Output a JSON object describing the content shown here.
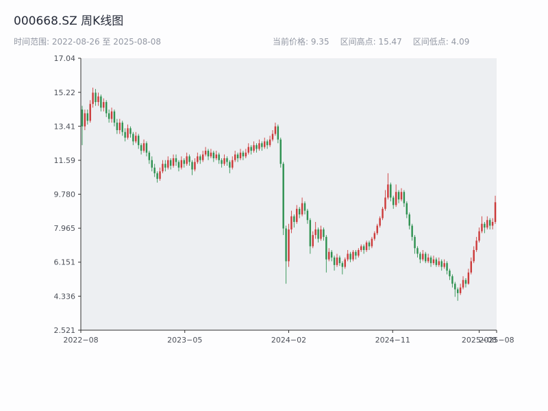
{
  "header": {
    "title": "000668.SZ 周K线图",
    "date_range": "时间范围: 2022-08-26 至 2025-08-08",
    "stats": {
      "current": "当前价格: 9.35",
      "high": "区间高点: 15.47",
      "low": "区间低点: 4.09"
    }
  },
  "chart_data": {
    "type": "candlestick",
    "title": "000668.SZ 周K线图",
    "frequency": "weekly",
    "date_start": "2022-08-26",
    "date_end": "2025-08-08",
    "current_price": 9.35,
    "range_high": 15.47,
    "range_low": 4.09,
    "y_min": 2.521,
    "y_max": 17.04,
    "y_ticks": [
      "17.04",
      "15.22",
      "13.41",
      "11.59",
      "9.780",
      "7.965",
      "6.151",
      "4.336",
      "2.521"
    ],
    "x_ticks": [
      {
        "pos": 0.0,
        "label": "2022−08"
      },
      {
        "pos": 0.25,
        "label": "2023−05"
      },
      {
        "pos": 0.5,
        "label": "2024−02"
      },
      {
        "pos": 0.75,
        "label": "2024−11"
      },
      {
        "pos": 0.958,
        "label": "2025−08"
      },
      {
        "pos": 1.0,
        "label": "2025−08"
      }
    ],
    "up_color": "#cc3a3a",
    "down_color": "#2e9150",
    "plot_bg": "#edeff2",
    "spine_color": "#2f2f2f",
    "candles_format": [
      "open",
      "high",
      "low",
      "close"
    ],
    "candles": [
      [
        14.3,
        14.5,
        12.4,
        13.4
      ],
      [
        13.4,
        14.3,
        13.2,
        14.1
      ],
      [
        14.1,
        14.3,
        13.5,
        13.7
      ],
      [
        13.7,
        14.8,
        13.6,
        14.6
      ],
      [
        14.6,
        15.47,
        14.4,
        15.2
      ],
      [
        15.2,
        15.4,
        14.5,
        14.7
      ],
      [
        14.7,
        15.2,
        14.5,
        15.0
      ],
      [
        15.0,
        15.1,
        14.2,
        14.4
      ],
      [
        14.4,
        14.9,
        14.2,
        14.7
      ],
      [
        14.7,
        14.8,
        13.9,
        14.1
      ],
      [
        14.1,
        14.3,
        13.6,
        13.8
      ],
      [
        13.8,
        14.4,
        13.6,
        14.2
      ],
      [
        14.2,
        14.3,
        13.4,
        13.6
      ],
      [
        13.6,
        13.8,
        13.0,
        13.2
      ],
      [
        13.2,
        13.8,
        13.0,
        13.6
      ],
      [
        13.6,
        13.7,
        12.9,
        13.1
      ],
      [
        13.1,
        13.3,
        12.6,
        12.8
      ],
      [
        12.8,
        13.5,
        12.7,
        13.3
      ],
      [
        13.3,
        13.4,
        12.8,
        13.0
      ],
      [
        13.0,
        13.1,
        12.4,
        12.6
      ],
      [
        12.6,
        13.1,
        12.5,
        12.9
      ],
      [
        12.9,
        13.0,
        12.2,
        12.4
      ],
      [
        12.4,
        12.5,
        11.9,
        12.1
      ],
      [
        12.1,
        12.7,
        12.0,
        12.5
      ],
      [
        12.5,
        12.6,
        11.8,
        12.0
      ],
      [
        12.0,
        12.1,
        11.4,
        11.6
      ],
      [
        11.6,
        11.8,
        11.0,
        11.2
      ],
      [
        11.2,
        11.4,
        10.7,
        10.9
      ],
      [
        10.9,
        11.0,
        10.4,
        10.6
      ],
      [
        10.6,
        11.2,
        10.5,
        11.0
      ],
      [
        11.0,
        11.6,
        10.9,
        11.4
      ],
      [
        11.4,
        11.6,
        11.0,
        11.2
      ],
      [
        11.2,
        11.8,
        11.1,
        11.6
      ],
      [
        11.6,
        11.7,
        11.1,
        11.3
      ],
      [
        11.3,
        11.9,
        11.2,
        11.7
      ],
      [
        11.7,
        11.9,
        11.3,
        11.5
      ],
      [
        11.5,
        11.6,
        11.0,
        11.2
      ],
      [
        11.2,
        11.8,
        11.1,
        11.6
      ],
      [
        11.6,
        11.7,
        11.2,
        11.4
      ],
      [
        11.4,
        12.0,
        11.3,
        11.8
      ],
      [
        11.8,
        11.9,
        11.3,
        11.5
      ],
      [
        11.5,
        11.6,
        10.8,
        11.1
      ],
      [
        11.1,
        11.7,
        11.0,
        11.5
      ],
      [
        11.5,
        12.0,
        11.4,
        11.8
      ],
      [
        11.8,
        11.9,
        11.4,
        11.6
      ],
      [
        11.6,
        12.1,
        11.5,
        11.9
      ],
      [
        11.9,
        12.3,
        11.8,
        12.1
      ],
      [
        12.1,
        12.2,
        11.6,
        11.8
      ],
      [
        11.8,
        12.2,
        11.7,
        12.0
      ],
      [
        12.0,
        12.1,
        11.5,
        11.7
      ],
      [
        11.7,
        12.1,
        11.6,
        11.9
      ],
      [
        11.9,
        12.0,
        11.4,
        11.6
      ],
      [
        11.6,
        11.7,
        11.2,
        11.4
      ],
      [
        11.4,
        11.9,
        11.3,
        11.7
      ],
      [
        11.7,
        11.8,
        11.3,
        11.5
      ],
      [
        11.5,
        11.6,
        10.9,
        11.2
      ],
      [
        11.2,
        11.8,
        11.1,
        11.6
      ],
      [
        11.6,
        12.1,
        11.5,
        11.9
      ],
      [
        11.9,
        12.0,
        11.5,
        11.7
      ],
      [
        11.7,
        12.2,
        11.6,
        12.0
      ],
      [
        12.0,
        12.1,
        11.6,
        11.8
      ],
      [
        11.8,
        12.2,
        11.7,
        12.0
      ],
      [
        12.0,
        12.5,
        11.9,
        12.3
      ],
      [
        12.3,
        12.4,
        11.9,
        12.1
      ],
      [
        12.1,
        12.6,
        12.0,
        12.4
      ],
      [
        12.4,
        12.5,
        12.0,
        12.2
      ],
      [
        12.2,
        12.7,
        12.1,
        12.5
      ],
      [
        12.5,
        12.6,
        12.1,
        12.3
      ],
      [
        12.3,
        12.8,
        12.2,
        12.6
      ],
      [
        12.6,
        12.7,
        12.2,
        12.4
      ],
      [
        12.4,
        12.9,
        12.3,
        12.7
      ],
      [
        12.7,
        13.2,
        12.6,
        13.0
      ],
      [
        13.0,
        13.6,
        12.9,
        13.4
      ],
      [
        13.4,
        13.5,
        12.5,
        12.7
      ],
      [
        12.7,
        12.8,
        11.2,
        11.4
      ],
      [
        11.4,
        11.5,
        7.6,
        7.95
      ],
      [
        7.95,
        8.1,
        5.0,
        6.2
      ],
      [
        6.2,
        8.2,
        5.9,
        7.9
      ],
      [
        7.9,
        8.9,
        7.7,
        8.6
      ],
      [
        8.6,
        8.7,
        8.0,
        8.3
      ],
      [
        8.3,
        9.2,
        8.2,
        9.0
      ],
      [
        9.0,
        9.1,
        8.5,
        8.7
      ],
      [
        8.7,
        9.6,
        8.6,
        9.3
      ],
      [
        9.3,
        9.4,
        8.7,
        8.9
      ],
      [
        8.9,
        9.0,
        8.2,
        8.4
      ],
      [
        8.4,
        8.5,
        6.6,
        7.0
      ],
      [
        7.0,
        7.8,
        6.9,
        7.6
      ],
      [
        7.6,
        8.3,
        7.4,
        7.9
      ],
      [
        7.9,
        8.0,
        7.2,
        7.4
      ],
      [
        7.4,
        8.1,
        7.3,
        7.9
      ],
      [
        7.9,
        8.0,
        7.3,
        7.5
      ],
      [
        7.5,
        7.6,
        5.6,
        6.3
      ],
      [
        6.3,
        6.9,
        6.2,
        6.7
      ],
      [
        6.7,
        6.8,
        6.2,
        6.4
      ],
      [
        6.4,
        6.5,
        5.7,
        6.0
      ],
      [
        6.0,
        6.6,
        5.9,
        6.4
      ],
      [
        6.4,
        6.5,
        5.95,
        6.1
      ],
      [
        6.1,
        6.2,
        5.5,
        5.9
      ],
      [
        5.9,
        6.4,
        5.8,
        6.3
      ],
      [
        6.3,
        6.8,
        6.2,
        6.6
      ],
      [
        6.6,
        6.7,
        6.15,
        6.3
      ],
      [
        6.3,
        6.8,
        6.2,
        6.7
      ],
      [
        6.7,
        6.8,
        6.3,
        6.5
      ],
      [
        6.5,
        6.9,
        6.4,
        6.8
      ],
      [
        6.8,
        7.1,
        6.7,
        7.0
      ],
      [
        7.0,
        7.1,
        6.6,
        6.8
      ],
      [
        6.8,
        7.3,
        6.7,
        7.2
      ],
      [
        7.2,
        7.3,
        6.8,
        7.0
      ],
      [
        7.0,
        7.5,
        6.9,
        7.4
      ],
      [
        7.4,
        7.8,
        7.3,
        7.7
      ],
      [
        7.7,
        8.2,
        7.6,
        8.1
      ],
      [
        8.1,
        8.6,
        8.0,
        8.5
      ],
      [
        8.5,
        9.1,
        8.4,
        9.0
      ],
      [
        9.0,
        10.0,
        8.9,
        9.6
      ],
      [
        9.6,
        10.9,
        9.5,
        10.3
      ],
      [
        10.3,
        10.4,
        9.4,
        9.6
      ],
      [
        9.6,
        9.7,
        9.0,
        9.2
      ],
      [
        9.2,
        10.3,
        9.1,
        9.9
      ],
      [
        9.9,
        10.0,
        9.3,
        9.5
      ],
      [
        9.5,
        10.1,
        9.4,
        9.9
      ],
      [
        9.9,
        10.0,
        9.1,
        9.3
      ],
      [
        9.3,
        9.4,
        8.5,
        8.7
      ],
      [
        8.7,
        8.8,
        7.9,
        8.1
      ],
      [
        8.1,
        8.2,
        7.3,
        7.5
      ],
      [
        7.5,
        7.6,
        6.6,
        6.9
      ],
      [
        6.9,
        7.0,
        6.4,
        6.6
      ],
      [
        6.6,
        6.7,
        6.1,
        6.3
      ],
      [
        6.3,
        6.8,
        6.2,
        6.6
      ],
      [
        6.6,
        6.7,
        6.1,
        6.2
      ],
      [
        6.2,
        6.6,
        6.1,
        6.4
      ],
      [
        6.4,
        6.5,
        5.9,
        6.1
      ],
      [
        6.1,
        6.5,
        6.0,
        6.3
      ],
      [
        6.3,
        6.4,
        5.9,
        6.0
      ],
      [
        6.0,
        6.4,
        5.9,
        6.2
      ],
      [
        6.2,
        6.3,
        5.7,
        5.9
      ],
      [
        5.9,
        6.3,
        5.8,
        6.1
      ],
      [
        6.1,
        6.2,
        5.5,
        5.7
      ],
      [
        5.7,
        5.8,
        5.2,
        5.4
      ],
      [
        5.4,
        5.5,
        4.8,
        5.0
      ],
      [
        5.0,
        5.1,
        4.3,
        4.7
      ],
      [
        4.7,
        4.8,
        4.09,
        4.5
      ],
      [
        4.5,
        5.0,
        4.4,
        4.8
      ],
      [
        4.8,
        5.4,
        4.7,
        5.2
      ],
      [
        5.2,
        5.3,
        4.8,
        5.0
      ],
      [
        5.0,
        5.8,
        4.95,
        5.6
      ],
      [
        5.6,
        6.4,
        5.5,
        6.2
      ],
      [
        6.2,
        7.0,
        6.1,
        6.8
      ],
      [
        6.8,
        7.5,
        6.7,
        7.3
      ],
      [
        7.3,
        8.0,
        7.2,
        7.8
      ],
      [
        7.8,
        8.6,
        7.7,
        8.2
      ],
      [
        8.2,
        8.3,
        7.7,
        8.0
      ],
      [
        8.0,
        8.6,
        7.9,
        8.4
      ],
      [
        8.4,
        8.5,
        7.9,
        8.1
      ],
      [
        8.1,
        8.5,
        7.9,
        8.3
      ],
      [
        8.3,
        9.7,
        8.2,
        9.35
      ]
    ]
  }
}
